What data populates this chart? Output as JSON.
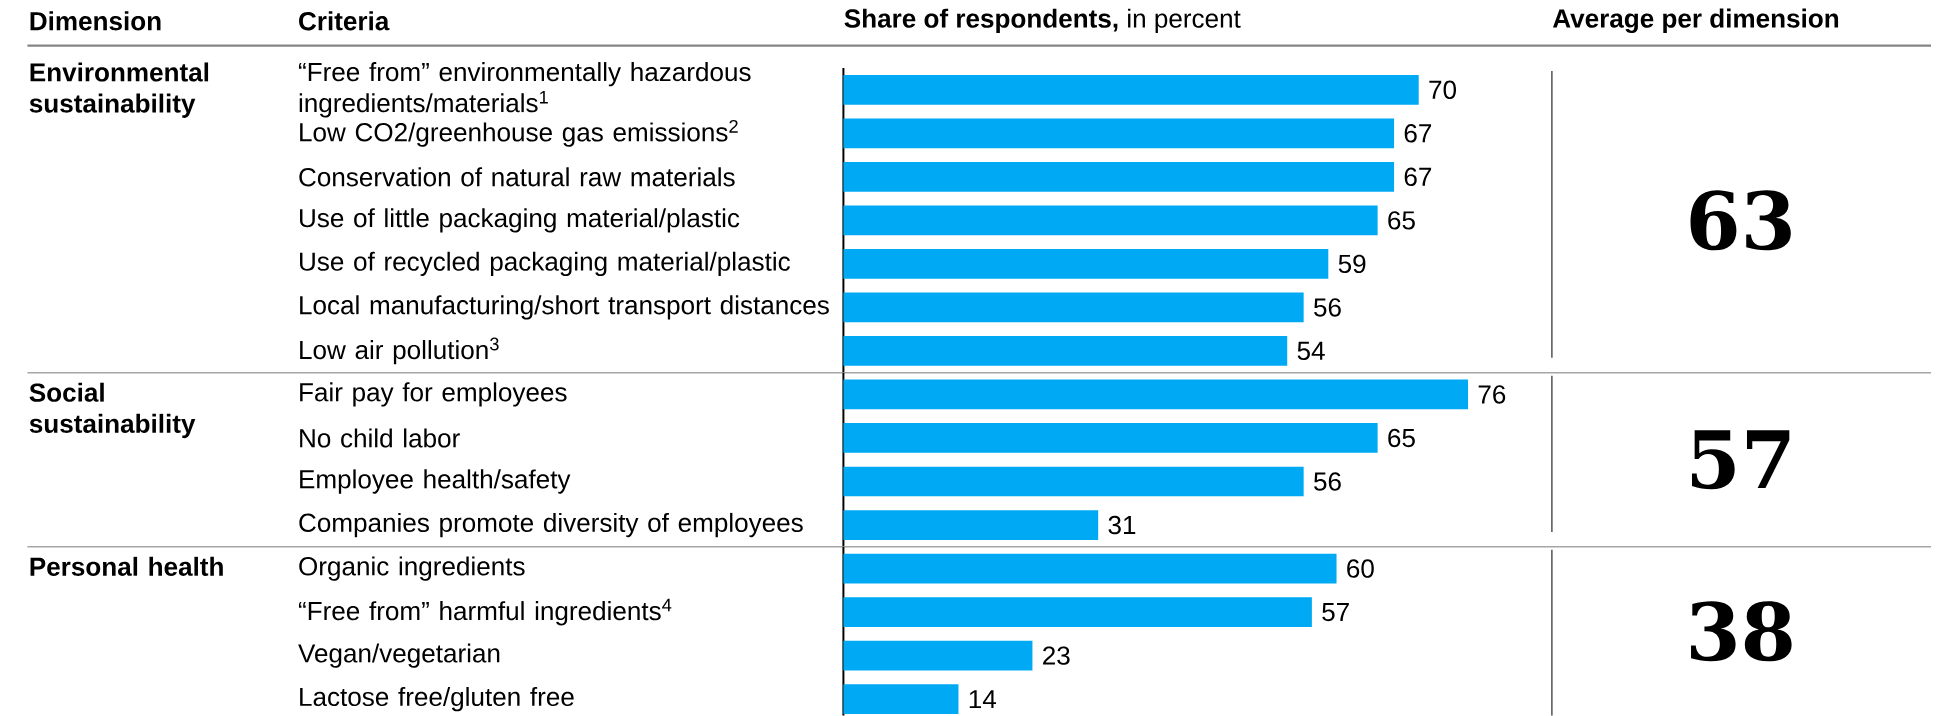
{
  "chart_data": [
    {
      "type": "bar",
      "orientation": "horizontal",
      "title": "Environmental sustainability",
      "xlabel": "**Share of respondents,** in percent",
      "ylabel": "Criteria",
      "categories": [
        "“Free from” environmentally hazardous ingredients/materials$^{1}$",
        "Low CO2/greenhouse gas emissions$^{2}$",
        "Conservation of natural raw materials",
        "Use of little packaging material/plastic",
        "Use of recycled packaging material/plastic",
        "Local manufacturing/short transport distances",
        "Low air pollution$^{3}$"
      ],
      "values": [
        70,
        67,
        67,
        65,
        59,
        56,
        54
      ],
      "color": "#00a9f4",
      "data_labels": true,
      "annotations": [
        "63",
        "Dimension",
        "Average per dimension"
      ]
    },
    {
      "type": "bar",
      "orientation": "horizontal",
      "title": "Social sustainability",
      "categories": [
        "Fair pay for employees",
        "No child labor",
        "Employee health/safety",
        "Companies promote diversity of employees"
      ],
      "values": [
        76,
        65,
        56,
        31
      ],
      "color": "#00a9f4",
      "data_labels": true,
      "annotations": [
        "57"
      ]
    },
    {
      "type": "bar",
      "orientation": "horizontal",
      "title": "Personal health",
      "categories": [
        "Organic ingredients",
        "“Free from” harmful ingredients$^{4}$",
        "Vegan/vegetarian",
        "Lactose free/gluten free"
      ],
      "values": [
        60,
        57,
        23,
        14
      ],
      "color": "#00a9f4",
      "data_labels": true,
      "annotations": [
        "38"
      ]
    }
  ]
}
